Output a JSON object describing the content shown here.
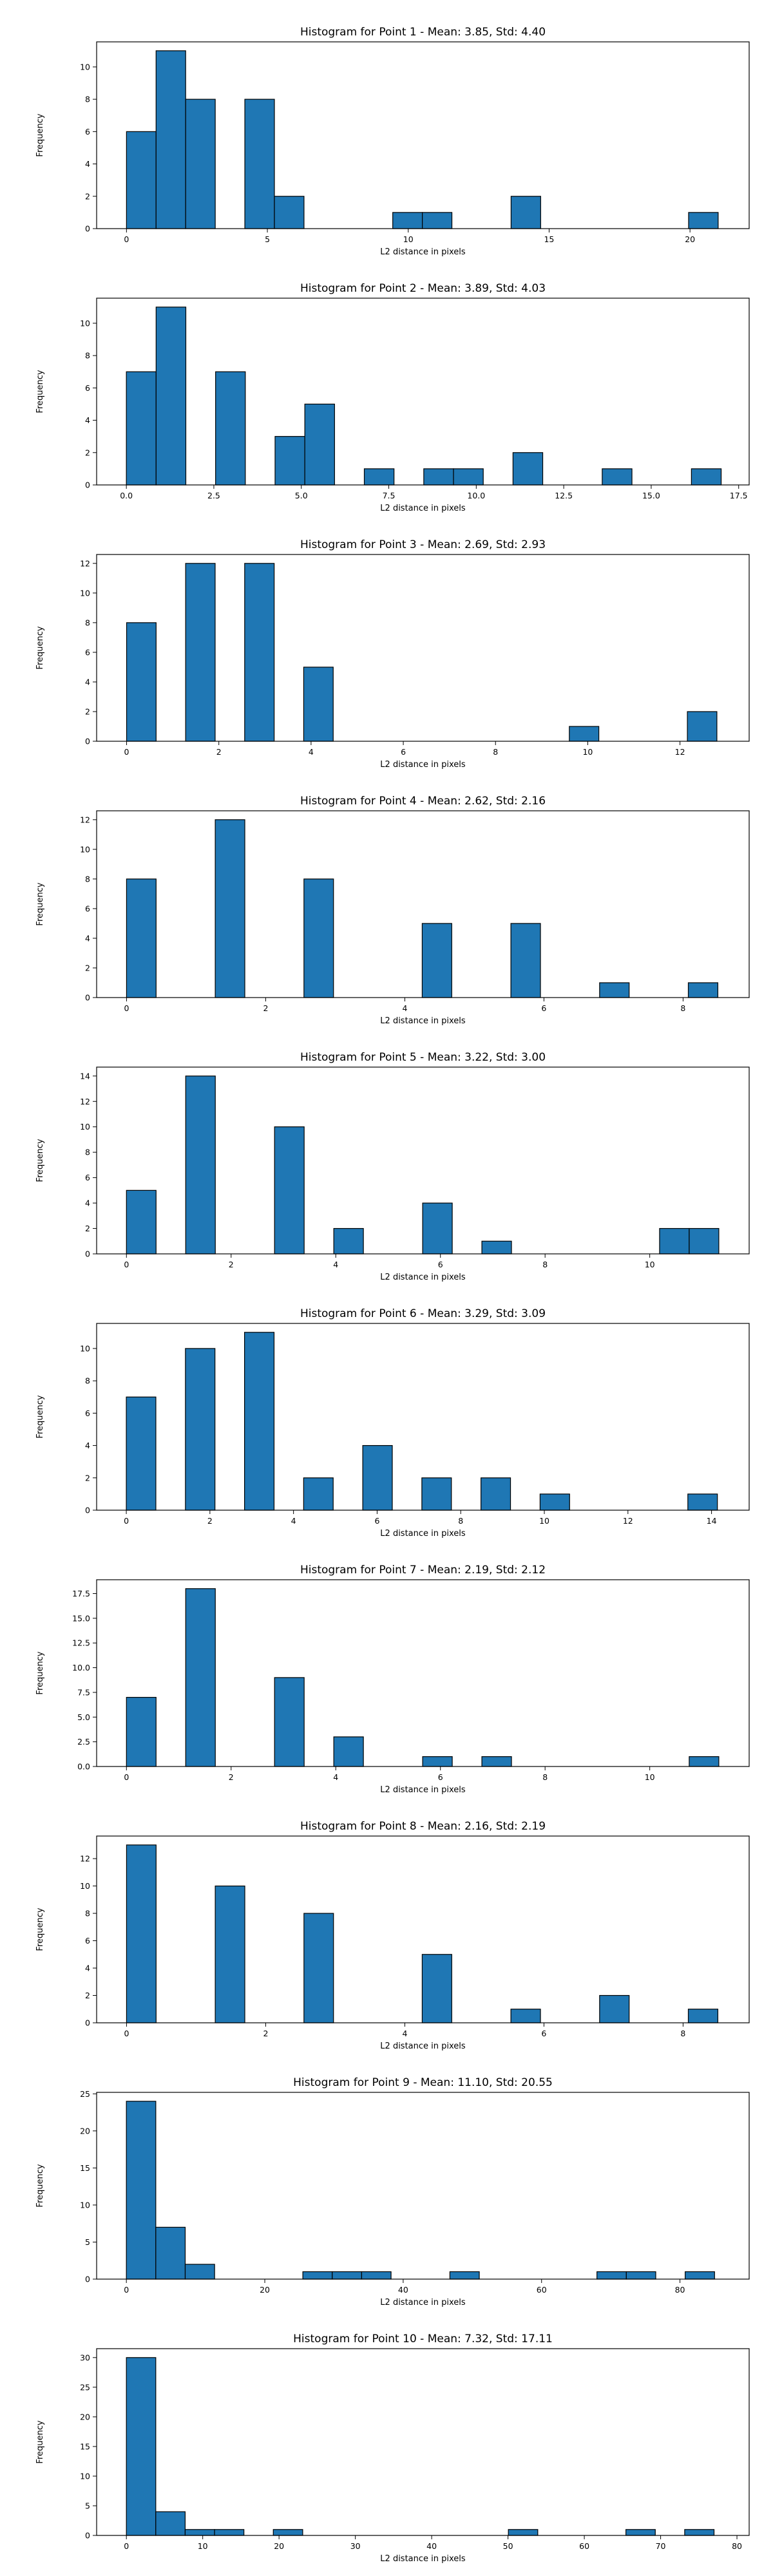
{
  "colors": {
    "bar_fill": "#1f77b4",
    "bar_edge": "#000000",
    "axes": "#000000",
    "background": "#ffffff"
  },
  "chart_data": [
    {
      "type": "bar",
      "title": "Histogram for Point 1 - Mean: 3.85, Std: 4.40",
      "xlabel": "L2 distance in pixels",
      "ylabel": "Frequency",
      "grid": false,
      "xlim": [
        -1.06,
        22.1
      ],
      "ylim": [
        0,
        11.55
      ],
      "xticks": [
        0,
        5,
        10,
        15,
        20
      ],
      "xtick_labels": [
        "0",
        "5",
        "10",
        "15",
        "20"
      ],
      "yticks": [
        0,
        2,
        4,
        6,
        8,
        10
      ],
      "ytick_labels": [
        "0",
        "2",
        "4",
        "6",
        "8",
        "10"
      ],
      "bin_edges": [
        0,
        1.05,
        2.1,
        3.15,
        4.2,
        5.25,
        6.3,
        7.35,
        8.4,
        9.45,
        10.5,
        11.55,
        12.6,
        13.65,
        14.7,
        15.75,
        16.8,
        17.85,
        18.9,
        19.95,
        21.0
      ],
      "counts": [
        6,
        11,
        8,
        0,
        8,
        2,
        0,
        0,
        0,
        1,
        1,
        0,
        0,
        2,
        0,
        0,
        0,
        0,
        0,
        1
      ]
    },
    {
      "type": "bar",
      "title": "Histogram for Point 2 - Mean: 3.89, Std: 4.03",
      "xlabel": "L2 distance in pixels",
      "ylabel": "Frequency",
      "grid": false,
      "xlim": [
        -0.85,
        17.8
      ],
      "ylim": [
        0,
        11.55
      ],
      "xticks": [
        0,
        2.5,
        5,
        7.5,
        10,
        12.5,
        15,
        17.5
      ],
      "xtick_labels": [
        "0.0",
        "2.5",
        "5.0",
        "7.5",
        "10.0",
        "12.5",
        "15.0",
        "17.5"
      ],
      "yticks": [
        0,
        2,
        4,
        6,
        8,
        10
      ],
      "ytick_labels": [
        "0",
        "2",
        "4",
        "6",
        "8",
        "10"
      ],
      "bin_edges": [
        0,
        0.85,
        1.7,
        2.55,
        3.4,
        4.25,
        5.1,
        5.95,
        6.8,
        7.65,
        8.5,
        9.35,
        10.2,
        11.05,
        11.9,
        12.75,
        13.6,
        14.45,
        15.3,
        16.15,
        17.0
      ],
      "counts": [
        7,
        11,
        0,
        7,
        0,
        3,
        5,
        0,
        1,
        0,
        1,
        1,
        0,
        2,
        0,
        0,
        1,
        0,
        0,
        1
      ]
    },
    {
      "type": "bar",
      "title": "Histogram for Point 3 - Mean: 2.69, Std: 2.93",
      "xlabel": "L2 distance in pixels",
      "ylabel": "Frequency",
      "grid": false,
      "xlim": [
        -0.65,
        13.5
      ],
      "ylim": [
        0,
        12.6
      ],
      "xticks": [
        0,
        2,
        4,
        6,
        8,
        10,
        12
      ],
      "xtick_labels": [
        "0",
        "2",
        "4",
        "6",
        "8",
        "10",
        "12"
      ],
      "yticks": [
        0,
        2,
        4,
        6,
        8,
        10,
        12
      ],
      "ytick_labels": [
        "0",
        "2",
        "4",
        "6",
        "8",
        "10",
        "12"
      ],
      "bin_edges": [
        0,
        0.64,
        1.28,
        1.92,
        2.56,
        3.2,
        3.84,
        4.48,
        5.12,
        5.76,
        6.4,
        7.04,
        7.68,
        8.32,
        8.96,
        9.6,
        10.24,
        10.88,
        11.52,
        12.16,
        12.8
      ],
      "counts": [
        8,
        0,
        12,
        0,
        12,
        0,
        5,
        0,
        0,
        0,
        0,
        0,
        0,
        0,
        0,
        1,
        0,
        0,
        0,
        2
      ]
    },
    {
      "type": "bar",
      "title": "Histogram for Point 4 - Mean: 2.62, Std: 2.16",
      "xlabel": "L2 distance in pixels",
      "ylabel": "Frequency",
      "grid": false,
      "xlim": [
        -0.43,
        8.95
      ],
      "ylim": [
        0,
        12.6
      ],
      "xticks": [
        0,
        2,
        4,
        6,
        8
      ],
      "xtick_labels": [
        "0",
        "2",
        "4",
        "6",
        "8"
      ],
      "yticks": [
        0,
        2,
        4,
        6,
        8,
        10,
        12
      ],
      "ytick_labels": [
        "0",
        "2",
        "4",
        "6",
        "8",
        "10",
        "12"
      ],
      "bin_edges": [
        0,
        0.425,
        0.85,
        1.275,
        1.7,
        2.125,
        2.55,
        2.975,
        3.4,
        3.825,
        4.25,
        4.675,
        5.1,
        5.525,
        5.95,
        6.375,
        6.8,
        7.225,
        7.65,
        8.075,
        8.5
      ],
      "counts": [
        8,
        0,
        0,
        12,
        0,
        0,
        8,
        0,
        0,
        0,
        5,
        0,
        0,
        5,
        0,
        0,
        1,
        0,
        0,
        1
      ]
    },
    {
      "type": "bar",
      "title": "Histogram for Point 5 - Mean: 3.22, Std: 3.00",
      "xlabel": "L2 distance in pixels",
      "ylabel": "Frequency",
      "grid": false,
      "xlim": [
        -0.57,
        11.9
      ],
      "ylim": [
        0,
        14.7
      ],
      "xticks": [
        0,
        2,
        4,
        6,
        8,
        10
      ],
      "xtick_labels": [
        "0",
        "2",
        "4",
        "6",
        "8",
        "10"
      ],
      "yticks": [
        0,
        2,
        4,
        6,
        8,
        10,
        12,
        14
      ],
      "ytick_labels": [
        "0",
        "2",
        "4",
        "6",
        "8",
        "10",
        "12",
        "14"
      ],
      "bin_edges": [
        0,
        0.566,
        1.132,
        1.698,
        2.264,
        2.83,
        3.396,
        3.962,
        4.528,
        5.094,
        5.66,
        6.226,
        6.792,
        7.358,
        7.924,
        8.49,
        9.056,
        9.622,
        10.188,
        10.754,
        11.32
      ],
      "counts": [
        5,
        0,
        14,
        0,
        0,
        10,
        0,
        2,
        0,
        0,
        4,
        0,
        1,
        0,
        0,
        0,
        0,
        0,
        2,
        2
      ]
    },
    {
      "type": "bar",
      "title": "Histogram for Point 6 - Mean: 3.29, Std: 3.09",
      "xlabel": "L2 distance in pixels",
      "ylabel": "Frequency",
      "grid": false,
      "xlim": [
        -0.71,
        14.9
      ],
      "ylim": [
        0,
        11.55
      ],
      "xticks": [
        0,
        2,
        4,
        6,
        8,
        10,
        12,
        14
      ],
      "xtick_labels": [
        "0",
        "2",
        "4",
        "6",
        "8",
        "10",
        "12",
        "14"
      ],
      "yticks": [
        0,
        2,
        4,
        6,
        8,
        10
      ],
      "ytick_labels": [
        "0",
        "2",
        "4",
        "6",
        "8",
        "10"
      ],
      "bin_edges": [
        0,
        0.707,
        1.414,
        2.121,
        2.828,
        3.535,
        4.242,
        4.949,
        5.656,
        6.363,
        7.07,
        7.777,
        8.484,
        9.191,
        9.898,
        10.605,
        11.312,
        12.019,
        12.726,
        13.433,
        14.14
      ],
      "counts": [
        7,
        0,
        10,
        0,
        11,
        0,
        2,
        0,
        4,
        0,
        2,
        0,
        2,
        0,
        1,
        0,
        0,
        0,
        0,
        1
      ]
    },
    {
      "type": "bar",
      "title": "Histogram for Point 7 - Mean: 2.19, Std: 2.12",
      "xlabel": "L2 distance in pixels",
      "ylabel": "Frequency",
      "grid": false,
      "xlim": [
        -0.57,
        11.9
      ],
      "ylim": [
        0,
        18.9
      ],
      "xticks": [
        0,
        2,
        4,
        6,
        8,
        10
      ],
      "xtick_labels": [
        "0",
        "2",
        "4",
        "6",
        "8",
        "10"
      ],
      "yticks": [
        0,
        2.5,
        5,
        7.5,
        10,
        12.5,
        15,
        17.5
      ],
      "ytick_labels": [
        "0.0",
        "2.5",
        "5.0",
        "7.5",
        "10.0",
        "12.5",
        "15.0",
        "17.5"
      ],
      "bin_edges": [
        0,
        0.566,
        1.132,
        1.698,
        2.264,
        2.83,
        3.396,
        3.962,
        4.528,
        5.094,
        5.66,
        6.226,
        6.792,
        7.358,
        7.924,
        8.49,
        9.056,
        9.622,
        10.188,
        10.754,
        11.32
      ],
      "counts": [
        7,
        0,
        18,
        0,
        0,
        9,
        0,
        3,
        0,
        0,
        1,
        0,
        1,
        0,
        0,
        0,
        0,
        0,
        0,
        1
      ]
    },
    {
      "type": "bar",
      "title": "Histogram for Point 8 - Mean: 2.16, Std: 2.19",
      "xlabel": "L2 distance in pixels",
      "ylabel": "Frequency",
      "grid": false,
      "xlim": [
        -0.43,
        8.95
      ],
      "ylim": [
        0,
        13.65
      ],
      "xticks": [
        0,
        2,
        4,
        6,
        8
      ],
      "xtick_labels": [
        "0",
        "2",
        "4",
        "6",
        "8"
      ],
      "yticks": [
        0,
        2,
        4,
        6,
        8,
        10,
        12
      ],
      "ytick_labels": [
        "0",
        "2",
        "4",
        "6",
        "8",
        "10",
        "12"
      ],
      "bin_edges": [
        0,
        0.425,
        0.85,
        1.275,
        1.7,
        2.125,
        2.55,
        2.975,
        3.4,
        3.825,
        4.25,
        4.675,
        5.1,
        5.525,
        5.95,
        6.375,
        6.8,
        7.225,
        7.65,
        8.075,
        8.5
      ],
      "counts": [
        13,
        0,
        0,
        10,
        0,
        0,
        8,
        0,
        0,
        0,
        5,
        0,
        0,
        1,
        0,
        0,
        2,
        0,
        0,
        1
      ]
    },
    {
      "type": "bar",
      "title": "Histogram for Point 9 - Mean: 11.10, Std: 20.55",
      "xlabel": "L2 distance in pixels",
      "ylabel": "Frequency",
      "grid": false,
      "xlim": [
        -4.3,
        90.0
      ],
      "ylim": [
        0,
        25.2
      ],
      "xticks": [
        0,
        20,
        40,
        60,
        80
      ],
      "xtick_labels": [
        "0",
        "20",
        "40",
        "60",
        "80"
      ],
      "yticks": [
        0,
        5,
        10,
        15,
        20,
        25
      ],
      "ytick_labels": [
        "0",
        "5",
        "10",
        "15",
        "20",
        "25"
      ],
      "bin_edges": [
        0,
        4.25,
        8.5,
        12.75,
        17.0,
        21.25,
        25.5,
        29.75,
        34.0,
        38.25,
        42.5,
        46.75,
        51.0,
        55.25,
        59.5,
        63.75,
        68.0,
        72.25,
        76.5,
        80.75,
        85.0
      ],
      "counts": [
        24,
        7,
        2,
        0,
        0,
        0,
        1,
        1,
        1,
        0,
        0,
        1,
        0,
        0,
        0,
        0,
        1,
        1,
        0,
        1
      ]
    },
    {
      "type": "bar",
      "title": "Histogram for Point 10 - Mean: 7.32, Std: 17.11",
      "xlabel": "L2 distance in pixels",
      "ylabel": "Frequency",
      "grid": false,
      "xlim": [
        -3.9,
        81.6
      ],
      "ylim": [
        0,
        31.5
      ],
      "xticks": [
        0,
        10,
        20,
        30,
        40,
        50,
        60,
        70,
        80
      ],
      "xtick_labels": [
        "0",
        "10",
        "20",
        "30",
        "40",
        "50",
        "60",
        "70",
        "80"
      ],
      "yticks": [
        0,
        5,
        10,
        15,
        20,
        25,
        30
      ],
      "ytick_labels": [
        "0",
        "5",
        "10",
        "15",
        "20",
        "25",
        "30"
      ],
      "bin_edges": [
        0,
        3.85,
        7.7,
        11.55,
        15.4,
        19.25,
        23.1,
        26.95,
        30.8,
        34.65,
        38.5,
        42.35,
        46.2,
        50.05,
        53.9,
        57.75,
        61.6,
        65.45,
        69.3,
        73.15,
        77.0
      ],
      "counts": [
        30,
        4,
        1,
        1,
        0,
        1,
        0,
        0,
        0,
        0,
        0,
        0,
        0,
        1,
        0,
        0,
        0,
        1,
        0,
        1
      ]
    }
  ]
}
